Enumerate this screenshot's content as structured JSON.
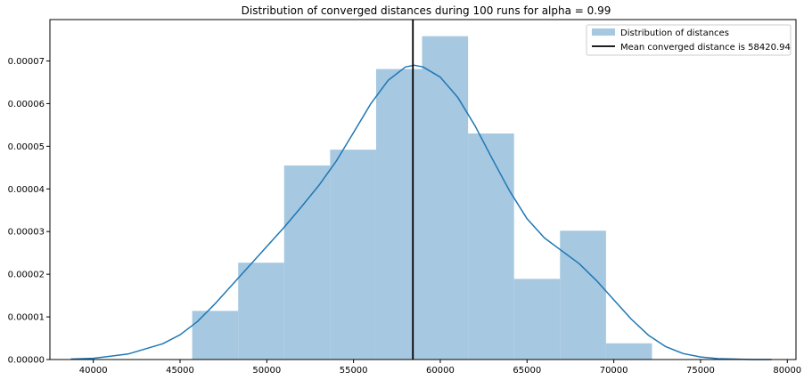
{
  "chart_data": {
    "type": "bar",
    "title": "Distribution of converged distances during 100 runs for alpha = 0.99",
    "xlabel": "",
    "ylabel": "",
    "xlim": [
      37500,
      80500
    ],
    "ylim": [
      0,
      7.97e-05
    ],
    "x_ticks": [
      40000,
      45000,
      50000,
      55000,
      60000,
      65000,
      70000,
      75000,
      80000
    ],
    "x_tick_labels": [
      "40000",
      "45000",
      "50000",
      "55000",
      "60000",
      "65000",
      "70000",
      "75000",
      "80000"
    ],
    "y_ticks": [
      0,
      1e-05,
      2e-05,
      3e-05,
      4e-05,
      5e-05,
      6e-05,
      7e-05
    ],
    "y_tick_labels": [
      "0.00000",
      "0.00001",
      "0.00002",
      "0.00003",
      "0.00004",
      "0.00005",
      "0.00006",
      "0.00007"
    ],
    "grid": false,
    "legend_position": "top-right",
    "colors": {
      "histogram": "#a6c8e0",
      "kde": "#1f77b4",
      "mean_line": "#000000"
    },
    "series": [
      {
        "name": "Distribution of distances",
        "kind": "histogram",
        "bin_edges": [
          45700,
          48350,
          51000,
          53650,
          56300,
          58950,
          61600,
          64250,
          66900,
          69550,
          72200
        ],
        "values": [
          1.14e-05,
          2.27e-05,
          4.55e-05,
          4.92e-05,
          6.81e-05,
          7.58e-05,
          5.3e-05,
          1.89e-05,
          3.02e-05,
          3.8e-06
        ]
      },
      {
        "name": "",
        "kind": "kde",
        "x": [
          38700,
          40000,
          42000,
          44000,
          45000,
          46000,
          47000,
          48000,
          49000,
          50000,
          51000,
          52000,
          53000,
          54000,
          55000,
          56000,
          57000,
          58000,
          58500,
          59000,
          60000,
          61000,
          62000,
          63000,
          64000,
          65000,
          66000,
          67000,
          68000,
          69000,
          70000,
          71000,
          72000,
          73000,
          74000,
          75000,
          76000,
          77000,
          78000,
          79100
        ],
        "values": [
          1e-07,
          3e-07,
          1.3e-06,
          3.7e-06,
          5.8e-06,
          8.9e-06,
          1.3e-05,
          1.75e-05,
          2.2e-05,
          2.65e-05,
          3.1e-05,
          3.58e-05,
          4.08e-05,
          4.65e-05,
          5.32e-05,
          6e-05,
          6.55e-05,
          6.86e-05,
          6.9e-05,
          6.86e-05,
          6.62e-05,
          6.15e-05,
          5.48e-05,
          4.7e-05,
          3.95e-05,
          3.3e-05,
          2.85e-05,
          2.55e-05,
          2.25e-05,
          1.85e-05,
          1.4e-05,
          9.5e-06,
          5.7e-06,
          3e-06,
          1.4e-06,
          6e-07,
          2e-07,
          1e-07,
          0.0,
          0.0
        ]
      },
      {
        "name": "Mean converged distance is 58420.94",
        "kind": "vline",
        "x": 58420.94
      }
    ]
  }
}
